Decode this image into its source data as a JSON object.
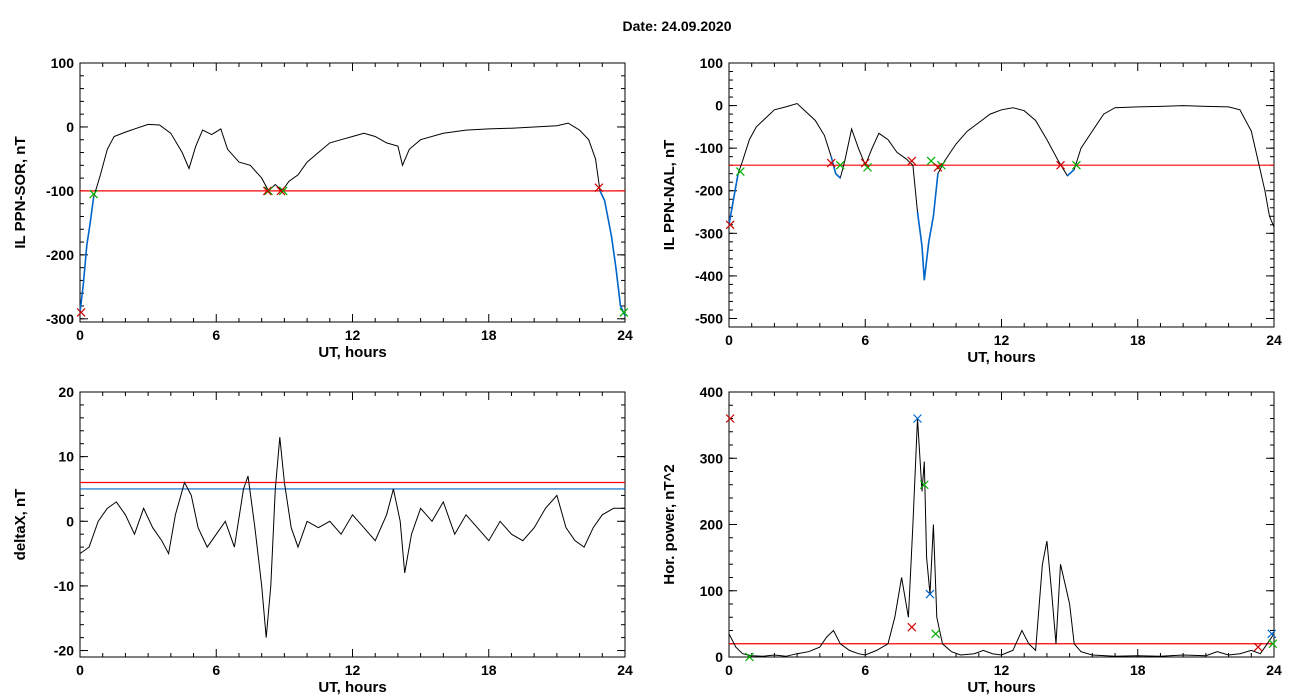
{
  "header": {
    "title": "Date:  24.09.2020"
  },
  "colors": {
    "trace": "#000000",
    "threshold": "#ff0000",
    "highlight": "#0066cc",
    "secondary_threshold": "#0066cc",
    "marker_start": "#00b000",
    "marker_end": "#cc0000",
    "marker_peak": "#0066cc"
  },
  "chart_data": [
    {
      "id": "sor",
      "type": "line",
      "xlabel": "UT, hours",
      "ylabel": "IL PPN-SOR, nT",
      "xlim": [
        0,
        24
      ],
      "ylim": [
        -305,
        100
      ],
      "xticks": [
        0,
        6,
        12,
        18,
        24
      ],
      "yticks": [
        -300,
        -200,
        -100,
        0,
        100
      ],
      "threshold": -100,
      "trace": [
        [
          0,
          -290
        ],
        [
          0.15,
          -245
        ],
        [
          0.3,
          -185
        ],
        [
          0.45,
          -150
        ],
        [
          0.6,
          -110
        ],
        [
          0.9,
          -75
        ],
        [
          1.2,
          -35
        ],
        [
          1.5,
          -15
        ],
        [
          2.0,
          -8
        ],
        [
          2.5,
          -2
        ],
        [
          3.0,
          4
        ],
        [
          3.5,
          3
        ],
        [
          4.0,
          -10
        ],
        [
          4.5,
          -40
        ],
        [
          4.8,
          -65
        ],
        [
          5.1,
          -30
        ],
        [
          5.4,
          -5
        ],
        [
          5.8,
          -12
        ],
        [
          6.2,
          -3
        ],
        [
          6.5,
          -35
        ],
        [
          7.0,
          -55
        ],
        [
          7.5,
          -60
        ],
        [
          8.0,
          -80
        ],
        [
          8.3,
          -100
        ],
        [
          8.6,
          -90
        ],
        [
          8.9,
          -100
        ],
        [
          9.2,
          -85
        ],
        [
          9.6,
          -75
        ],
        [
          10.0,
          -55
        ],
        [
          10.5,
          -40
        ],
        [
          11.0,
          -25
        ],
        [
          11.5,
          -20
        ],
        [
          12.0,
          -15
        ],
        [
          12.5,
          -10
        ],
        [
          13.0,
          -15
        ],
        [
          13.5,
          -25
        ],
        [
          14.0,
          -30
        ],
        [
          14.2,
          -60
        ],
        [
          14.5,
          -35
        ],
        [
          15.0,
          -20
        ],
        [
          16.0,
          -10
        ],
        [
          17.0,
          -5
        ],
        [
          18.0,
          -3
        ],
        [
          19.0,
          -2
        ],
        [
          20.0,
          0
        ],
        [
          21.0,
          2
        ],
        [
          21.5,
          6
        ],
        [
          22.0,
          -5
        ],
        [
          22.4,
          -20
        ],
        [
          22.7,
          -50
        ],
        [
          22.9,
          -100
        ],
        [
          23.1,
          -115
        ],
        [
          23.4,
          -170
        ],
        [
          23.6,
          -220
        ],
        [
          23.8,
          -280
        ],
        [
          24.0,
          -295
        ]
      ],
      "highlights": [
        [
          0,
          0.6
        ],
        [
          22.9,
          24.0
        ]
      ],
      "markers_start": [
        [
          0.6,
          -105
        ],
        [
          8.3,
          -100
        ],
        [
          8.95,
          -100
        ],
        [
          23.95,
          -290
        ]
      ],
      "markers_end": [
        [
          0.05,
          -290
        ],
        [
          8.25,
          -100
        ],
        [
          8.85,
          -100
        ],
        [
          22.85,
          -95
        ]
      ]
    },
    {
      "id": "nal",
      "type": "line",
      "xlabel": "UT, hours",
      "ylabel": "IL PPN-NAL, nT",
      "xlim": [
        0,
        24
      ],
      "ylim": [
        -520,
        100
      ],
      "xticks": [
        0,
        6,
        12,
        18,
        24
      ],
      "yticks": [
        -500,
        -400,
        -300,
        -200,
        -100,
        0,
        100
      ],
      "threshold": -140,
      "trace": [
        [
          0,
          -280
        ],
        [
          0.2,
          -220
        ],
        [
          0.4,
          -160
        ],
        [
          0.6,
          -130
        ],
        [
          0.9,
          -80
        ],
        [
          1.2,
          -50
        ],
        [
          1.6,
          -30
        ],
        [
          2.0,
          -10
        ],
        [
          2.5,
          -3
        ],
        [
          3.0,
          5
        ],
        [
          3.4,
          -15
        ],
        [
          3.8,
          -35
        ],
        [
          4.2,
          -70
        ],
        [
          4.5,
          -120
        ],
        [
          4.7,
          -160
        ],
        [
          4.9,
          -170
        ],
        [
          5.1,
          -130
        ],
        [
          5.4,
          -55
        ],
        [
          5.7,
          -100
        ],
        [
          6.0,
          -140
        ],
        [
          6.3,
          -100
        ],
        [
          6.6,
          -65
        ],
        [
          7.0,
          -80
        ],
        [
          7.4,
          -110
        ],
        [
          7.8,
          -125
        ],
        [
          8.1,
          -140
        ],
        [
          8.3,
          -250
        ],
        [
          8.5,
          -330
        ],
        [
          8.6,
          -410
        ],
        [
          8.8,
          -320
        ],
        [
          9.0,
          -260
        ],
        [
          9.2,
          -160
        ],
        [
          9.5,
          -130
        ],
        [
          10.0,
          -90
        ],
        [
          10.5,
          -60
        ],
        [
          11.0,
          -40
        ],
        [
          11.5,
          -20
        ],
        [
          12.0,
          -10
        ],
        [
          12.5,
          -5
        ],
        [
          13.0,
          -12
        ],
        [
          13.5,
          -35
        ],
        [
          14.0,
          -80
        ],
        [
          14.5,
          -130
        ],
        [
          14.9,
          -165
        ],
        [
          15.2,
          -150
        ],
        [
          15.5,
          -100
        ],
        [
          16.0,
          -60
        ],
        [
          16.5,
          -20
        ],
        [
          17.0,
          -5
        ],
        [
          18.0,
          -3
        ],
        [
          19.0,
          -2
        ],
        [
          20.0,
          0
        ],
        [
          21.0,
          -2
        ],
        [
          22.0,
          -3
        ],
        [
          22.5,
          -10
        ],
        [
          23.0,
          -60
        ],
        [
          23.3,
          -130
        ],
        [
          23.6,
          -200
        ],
        [
          23.8,
          -260
        ],
        [
          24.0,
          -285
        ]
      ],
      "highlights": [
        [
          0,
          0.5
        ],
        [
          4.5,
          5.0
        ],
        [
          6.0,
          6.1
        ],
        [
          8.2,
          9.3
        ],
        [
          14.6,
          15.3
        ]
      ],
      "markers_start": [
        [
          0.5,
          -155
        ],
        [
          4.9,
          -140
        ],
        [
          6.1,
          -145
        ],
        [
          8.9,
          -130
        ],
        [
          9.35,
          -140
        ],
        [
          15.3,
          -140
        ]
      ],
      "markers_end": [
        [
          0.05,
          -280
        ],
        [
          4.5,
          -135
        ],
        [
          6.0,
          -135
        ],
        [
          8.05,
          -130
        ],
        [
          9.2,
          -145
        ],
        [
          14.6,
          -140
        ]
      ]
    },
    {
      "id": "deltax",
      "type": "line",
      "xlabel": "UT, hours",
      "ylabel": "deltaX, nT",
      "xlim": [
        0,
        24
      ],
      "ylim": [
        -21,
        20
      ],
      "xticks": [
        0,
        6,
        12,
        18,
        24
      ],
      "yticks": [
        -20,
        -10,
        0,
        10,
        20
      ],
      "threshold": 6,
      "threshold2": 5,
      "trace": [
        [
          0,
          -5
        ],
        [
          0.4,
          -4
        ],
        [
          0.8,
          0
        ],
        [
          1.2,
          2
        ],
        [
          1.6,
          3
        ],
        [
          2.0,
          1
        ],
        [
          2.4,
          -2
        ],
        [
          2.8,
          2
        ],
        [
          3.2,
          -1
        ],
        [
          3.6,
          -3
        ],
        [
          3.9,
          -5
        ],
        [
          4.2,
          1
        ],
        [
          4.6,
          6
        ],
        [
          4.9,
          4
        ],
        [
          5.2,
          -1
        ],
        [
          5.6,
          -4
        ],
        [
          6.0,
          -2
        ],
        [
          6.4,
          0
        ],
        [
          6.8,
          -4
        ],
        [
          7.2,
          5
        ],
        [
          7.4,
          7
        ],
        [
          7.7,
          -1
        ],
        [
          8.0,
          -10
        ],
        [
          8.2,
          -18
        ],
        [
          8.4,
          -10
        ],
        [
          8.6,
          5
        ],
        [
          8.8,
          13
        ],
        [
          9.0,
          6
        ],
        [
          9.3,
          -1
        ],
        [
          9.6,
          -4
        ],
        [
          10.0,
          0
        ],
        [
          10.5,
          -1
        ],
        [
          11.0,
          0
        ],
        [
          11.5,
          -2
        ],
        [
          12.0,
          1
        ],
        [
          12.5,
          -1
        ],
        [
          13.0,
          -3
        ],
        [
          13.5,
          1
        ],
        [
          13.8,
          5
        ],
        [
          14.1,
          0
        ],
        [
          14.3,
          -8
        ],
        [
          14.6,
          -2
        ],
        [
          15.0,
          2
        ],
        [
          15.5,
          0
        ],
        [
          16.0,
          3
        ],
        [
          16.5,
          -2
        ],
        [
          17.0,
          1
        ],
        [
          17.5,
          -1
        ],
        [
          18.0,
          -3
        ],
        [
          18.5,
          0
        ],
        [
          19.0,
          -2
        ],
        [
          19.5,
          -3
        ],
        [
          20.0,
          -1
        ],
        [
          20.5,
          2
        ],
        [
          21.0,
          4
        ],
        [
          21.4,
          -1
        ],
        [
          21.8,
          -3
        ],
        [
          22.2,
          -4
        ],
        [
          22.6,
          -1
        ],
        [
          23.0,
          1
        ],
        [
          23.5,
          2
        ],
        [
          24.0,
          2
        ]
      ],
      "highlights": [],
      "markers_start": [],
      "markers_end": []
    },
    {
      "id": "hpower",
      "type": "line",
      "xlabel": "UT, hours",
      "ylabel": "Hor. power, nT^2",
      "xlim": [
        0,
        24
      ],
      "ylim": [
        0,
        400
      ],
      "xticks": [
        0,
        6,
        12,
        18,
        24
      ],
      "yticks": [
        0,
        100,
        200,
        300,
        400
      ],
      "threshold": 20,
      "trace": [
        [
          0,
          35
        ],
        [
          0.3,
          15
        ],
        [
          0.6,
          5
        ],
        [
          1.0,
          2
        ],
        [
          1.5,
          1
        ],
        [
          2.0,
          3
        ],
        [
          2.5,
          1
        ],
        [
          3.0,
          5
        ],
        [
          3.5,
          8
        ],
        [
          4.0,
          15
        ],
        [
          4.3,
          30
        ],
        [
          4.6,
          40
        ],
        [
          4.9,
          20
        ],
        [
          5.3,
          10
        ],
        [
          5.7,
          5
        ],
        [
          6.0,
          3
        ],
        [
          6.5,
          10
        ],
        [
          7.0,
          20
        ],
        [
          7.3,
          60
        ],
        [
          7.6,
          120
        ],
        [
          7.9,
          60
        ],
        [
          8.1,
          200
        ],
        [
          8.3,
          360
        ],
        [
          8.5,
          250
        ],
        [
          8.6,
          295
        ],
        [
          8.7,
          150
        ],
        [
          8.85,
          95
        ],
        [
          9.0,
          200
        ],
        [
          9.15,
          60
        ],
        [
          9.4,
          20
        ],
        [
          9.8,
          8
        ],
        [
          10.2,
          3
        ],
        [
          10.8,
          5
        ],
        [
          11.2,
          10
        ],
        [
          11.6,
          5
        ],
        [
          12.0,
          3
        ],
        [
          12.5,
          10
        ],
        [
          12.9,
          40
        ],
        [
          13.2,
          20
        ],
        [
          13.5,
          10
        ],
        [
          13.8,
          140
        ],
        [
          14.0,
          175
        ],
        [
          14.2,
          100
        ],
        [
          14.4,
          20
        ],
        [
          14.6,
          140
        ],
        [
          14.8,
          110
        ],
        [
          15.0,
          80
        ],
        [
          15.2,
          20
        ],
        [
          15.5,
          8
        ],
        [
          16.0,
          3
        ],
        [
          17.0,
          1
        ],
        [
          18.0,
          2
        ],
        [
          19.0,
          1
        ],
        [
          20.0,
          3
        ],
        [
          21.0,
          2
        ],
        [
          21.5,
          8
        ],
        [
          22.0,
          3
        ],
        [
          22.5,
          5
        ],
        [
          23.0,
          10
        ],
        [
          23.4,
          5
        ],
        [
          23.7,
          20
        ],
        [
          24.0,
          35
        ]
      ],
      "highlights": [],
      "markers_start": [
        [
          0.9,
          0
        ],
        [
          8.6,
          260
        ],
        [
          9.1,
          35
        ],
        [
          23.95,
          20
        ]
      ],
      "markers_end": [
        [
          0.05,
          360
        ],
        [
          8.05,
          45
        ],
        [
          23.3,
          15
        ]
      ],
      "markers_peak": [
        [
          8.3,
          360
        ],
        [
          8.85,
          95
        ],
        [
          23.9,
          35
        ]
      ]
    }
  ]
}
